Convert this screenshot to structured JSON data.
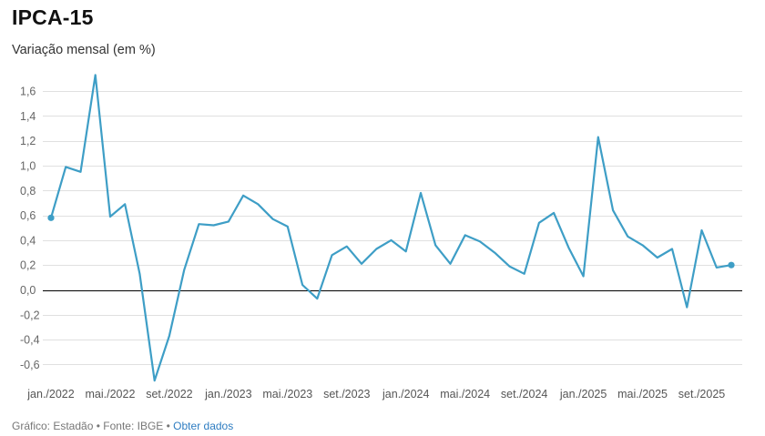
{
  "title": "IPCA-15",
  "subtitle": "Variação mensal (em %)",
  "footer": {
    "credit": "Gráfico: Estadão",
    "separator": " • ",
    "source": "Fonte: IBGE",
    "link_label": "Obter dados"
  },
  "colors": {
    "line": "#3e9ec6",
    "zero_line": "#000000",
    "grid": "#e0e0e0",
    "link": "#2d7cc1"
  },
  "chart_data": {
    "type": "line",
    "x": [
      "jan./2022",
      "fev./2022",
      "mar./2022",
      "abr./2022",
      "mai./2022",
      "jun./2022",
      "jul./2022",
      "ago./2022",
      "set./2022",
      "out./2022",
      "nov./2022",
      "dez./2022",
      "jan./2023",
      "fev./2023",
      "mar./2023",
      "abr./2023",
      "mai./2023",
      "jun./2023",
      "jul./2023",
      "ago./2023",
      "set./2023",
      "out./2023",
      "nov./2023",
      "dez./2023",
      "jan./2024",
      "fev./2024",
      "mar./2024",
      "abr./2024",
      "mai./2024",
      "jun./2024",
      "jul./2024",
      "ago./2024",
      "set./2024",
      "out./2024",
      "nov./2024",
      "dez./2024",
      "jan./2025",
      "fev./2025",
      "mar./2025",
      "abr./2025",
      "mai./2025",
      "jun./2025",
      "jul./2025",
      "ago./2025",
      "set./2025",
      "out./2025",
      "nov./2025"
    ],
    "series": [
      {
        "values": [
          0.58,
          0.99,
          0.95,
          1.73,
          0.59,
          0.69,
          0.13,
          -0.73,
          -0.37,
          0.16,
          0.53,
          0.52,
          0.55,
          0.76,
          0.69,
          0.57,
          0.51,
          0.04,
          -0.07,
          0.28,
          0.35,
          0.21,
          0.33,
          0.4,
          0.31,
          0.78,
          0.36,
          0.21,
          0.44,
          0.39,
          0.3,
          0.19,
          0.13,
          0.54,
          0.62,
          0.34,
          0.11,
          1.23,
          0.64,
          0.43,
          0.36,
          0.26,
          0.33,
          -0.14,
          0.48,
          0.18,
          0.2
        ]
      }
    ],
    "x_tick_labels": [
      "jan./2022",
      "mai./2022",
      "set./2022",
      "jan./2023",
      "mai./2023",
      "set./2023",
      "jan./2024",
      "mai./2024",
      "set./2024",
      "jan./2025",
      "mai./2025",
      "set./2025"
    ],
    "x_tick_indices": [
      0,
      4,
      8,
      12,
      16,
      20,
      24,
      28,
      32,
      36,
      40,
      44
    ],
    "y_ticks": [
      "1,6",
      "1,4",
      "1,2",
      "1,0",
      "0,8",
      "0,6",
      "0,4",
      "0,2",
      "0,0",
      "-0,2",
      "-0,4",
      "-0,6"
    ],
    "y_tick_values": [
      1.6,
      1.4,
      1.2,
      1.0,
      0.8,
      0.6,
      0.4,
      0.2,
      0.0,
      -0.2,
      -0.4,
      -0.6
    ],
    "ylim": [
      -0.75,
      1.75
    ],
    "grid": true,
    "markers": "first and last point",
    "zero_line": true
  }
}
